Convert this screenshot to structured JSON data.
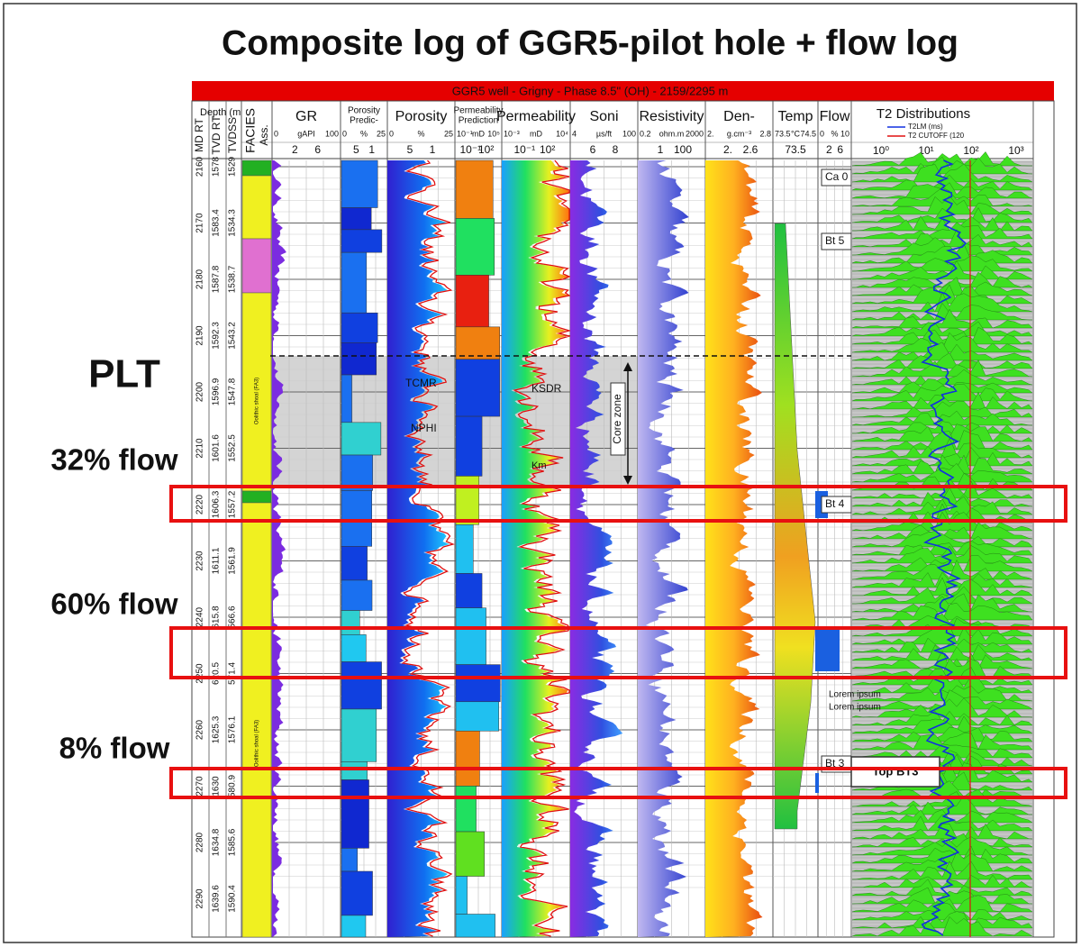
{
  "title": "Composite log of GGR5-pilot hole + flow log",
  "banner": "GGR5 well - Grigny - Phase 8.5\" (OH) - 2159/2295 m",
  "depth_title": "Depth (m",
  "depth_headers": [
    "MD RT",
    "TVD RT",
    "TVDSS"
  ],
  "md": [
    "2160",
    "2170",
    "2180",
    "2190",
    "2200",
    "2210",
    "2220",
    "2230",
    "2240",
    "2250",
    "2260",
    "2270",
    "2280",
    "2290"
  ],
  "tvd": [
    "1578",
    "1583.4",
    "1587.8",
    "1592.3",
    "1596.9",
    "1601.6",
    "1606.3",
    "1611.1",
    "615.8",
    "620.5",
    "1625.3",
    "1630",
    "1634.8",
    "1639.6"
  ],
  "tvdss": [
    "1529",
    "1534.3",
    "1538.7",
    "1543.2",
    "1547.8",
    "1552.5",
    "1557.2",
    "1561.9",
    "566.6",
    "571.4",
    "1576.1",
    "580.9",
    "1585.6",
    "1590.4"
  ],
  "tracks": [
    {
      "name": [
        "FACIES"
      ],
      "scale": [
        "Ass."
      ],
      "ticks": []
    },
    {
      "name": [
        "GR"
      ],
      "scale": [
        "0",
        "gAPI",
        "100"
      ],
      "ticks": [
        "2",
        "6"
      ]
    },
    {
      "name": [
        "Porosity",
        "Predic-"
      ],
      "scale": [
        "0",
        "%",
        "25"
      ],
      "ticks": [
        "5",
        "1"
      ]
    },
    {
      "name": [
        "Porosity"
      ],
      "scale": [
        "0",
        "%",
        "25"
      ],
      "ticks": [
        "5",
        "1"
      ]
    },
    {
      "name": [
        "Permeability",
        "Prediction"
      ],
      "scale": [
        "10⁻¹",
        "mD",
        "10⁵"
      ],
      "ticks": [
        "10⁻¹",
        "10²"
      ]
    },
    {
      "name": [
        "Permeability"
      ],
      "scale": [
        "10⁻³",
        "mD",
        "10⁴"
      ],
      "ticks": [
        "10⁻¹",
        "10²"
      ]
    },
    {
      "name": [
        "Soni"
      ],
      "scale": [
        "4",
        "µs/ft",
        "100"
      ],
      "ticks": [
        "6",
        "8"
      ]
    },
    {
      "name": [
        "Resistivity"
      ],
      "scale": [
        "0.2",
        "ohm.m",
        "2000"
      ],
      "ticks": [
        "1",
        "100"
      ]
    },
    {
      "name": [
        "Den-"
      ],
      "scale": [
        "2.",
        "g.cm⁻³",
        "2.8"
      ],
      "ticks": [
        "2.",
        "2.6"
      ]
    },
    {
      "name": [
        "Temp"
      ],
      "scale": [
        "73.5",
        "°C",
        "74.5"
      ],
      "ticks": [
        "73.5"
      ]
    },
    {
      "name": [
        "Flow"
      ],
      "scale": [
        "0",
        "%",
        "10"
      ],
      "ticks": [
        "2",
        "6"
      ]
    }
  ],
  "t2": {
    "name": "T2 Distributions",
    "legend": [
      "T2LM (ms)",
      "T2 CUTOFF (120"
    ],
    "ticks": [
      "10⁰",
      "10¹",
      "10²",
      "10³"
    ]
  },
  "side_labels": [
    "PLT",
    "32% flow",
    "60% flow",
    "8% flow"
  ],
  "markers": [
    "Ca 0",
    "Bt 5",
    "Bt 4",
    "Bt 3"
  ],
  "top_bt3": "Top BT3",
  "notes": {
    "tcmr": "TCMR",
    "nphi": "NPHI",
    "ksdr": "KSDR",
    "km": "Km",
    "core_zone": "Core zone",
    "lorem": [
      "Lorem ipsum",
      "Lorem ipsum"
    ],
    "facies": [
      "Oolithic shoal (FA3)",
      "Oolithic shoal (FA3)"
    ]
  }
}
